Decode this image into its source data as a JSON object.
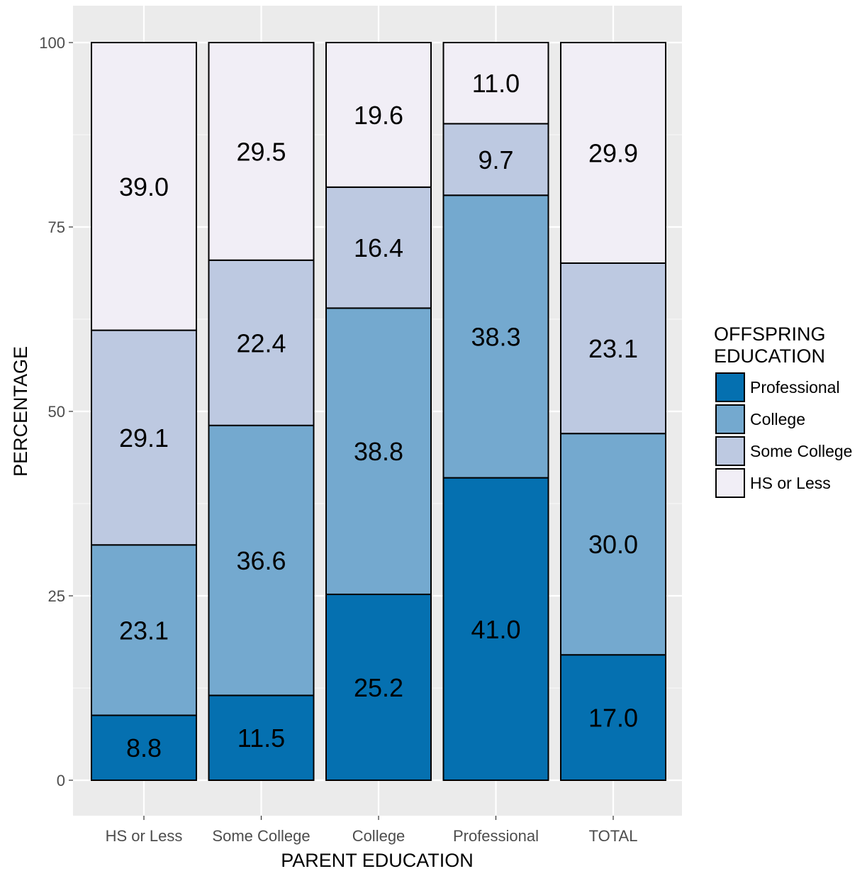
{
  "chart_data": {
    "type": "bar",
    "stacked": true,
    "xlabel": "PARENT EDUCATION",
    "ylabel": "PERCENTAGE",
    "ylim": [
      0,
      100
    ],
    "yticks": [
      0,
      25,
      50,
      75,
      100
    ],
    "grid": true,
    "legend_position": "right",
    "legend_title": [
      "OFFSPRING",
      "EDUCATION"
    ],
    "categories": [
      "HS or Less",
      "Some College",
      "College",
      "Professional",
      "TOTAL"
    ],
    "series": [
      {
        "name": "Professional",
        "color": "#0570b0",
        "values": [
          8.8,
          11.5,
          25.2,
          41.0,
          17.0
        ]
      },
      {
        "name": "College",
        "color": "#74a9cf",
        "values": [
          23.1,
          36.6,
          38.8,
          38.3,
          30.0
        ]
      },
      {
        "name": "Some College",
        "color": "#bdc9e1",
        "values": [
          29.1,
          22.4,
          16.4,
          9.7,
          23.1
        ]
      },
      {
        "name": "HS or Less",
        "color": "#f1eef6",
        "values": [
          39.0,
          29.5,
          19.6,
          11.0,
          29.9
        ]
      }
    ],
    "panel_background": "#ebebeb"
  }
}
